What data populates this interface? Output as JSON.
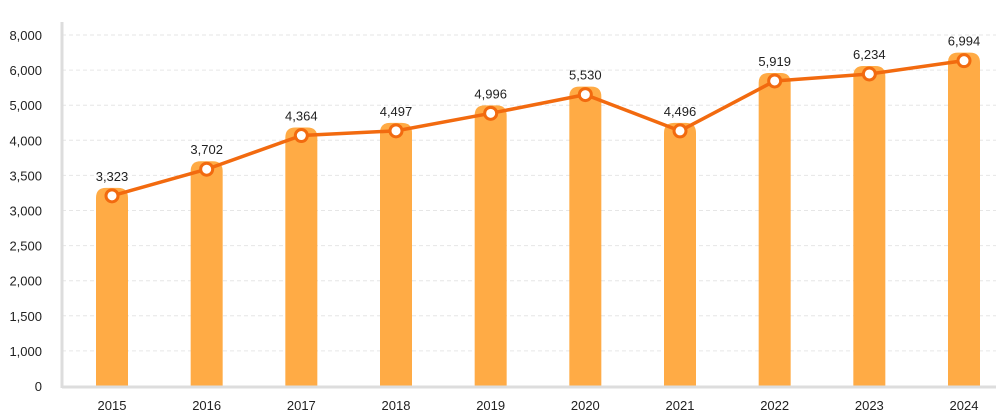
{
  "chart_data": {
    "type": "bar",
    "categories": [
      "2015",
      "2016",
      "2017",
      "2018",
      "2019",
      "2020",
      "2021",
      "2022",
      "2023",
      "2024"
    ],
    "values": [
      3323,
      3702,
      4364,
      4497,
      4996,
      5530,
      4496,
      5919,
      6234,
      6994
    ],
    "value_labels": [
      "3,323",
      "3,702",
      "4,364",
      "4,497",
      "4,996",
      "5,530",
      "4,496",
      "5,919",
      "6,234",
      "6,994"
    ],
    "overlay": "line",
    "y_ticks": [
      0,
      1000,
      1500,
      2000,
      2500,
      3000,
      3500,
      4000,
      5000,
      6000,
      8000
    ],
    "y_tick_labels": [
      "0",
      "1,000",
      "1,500",
      "2,000",
      "2,500",
      "3,000",
      "3,500",
      "4,000",
      "5,000",
      "6,000",
      "8,000"
    ],
    "grid": true,
    "legend": "none",
    "colors": {
      "bar": "#ffab45",
      "line": "#f26a0f",
      "marker_fill": "#ffffff",
      "grid": "#e6e6e6",
      "axis": "#dddddd"
    }
  }
}
